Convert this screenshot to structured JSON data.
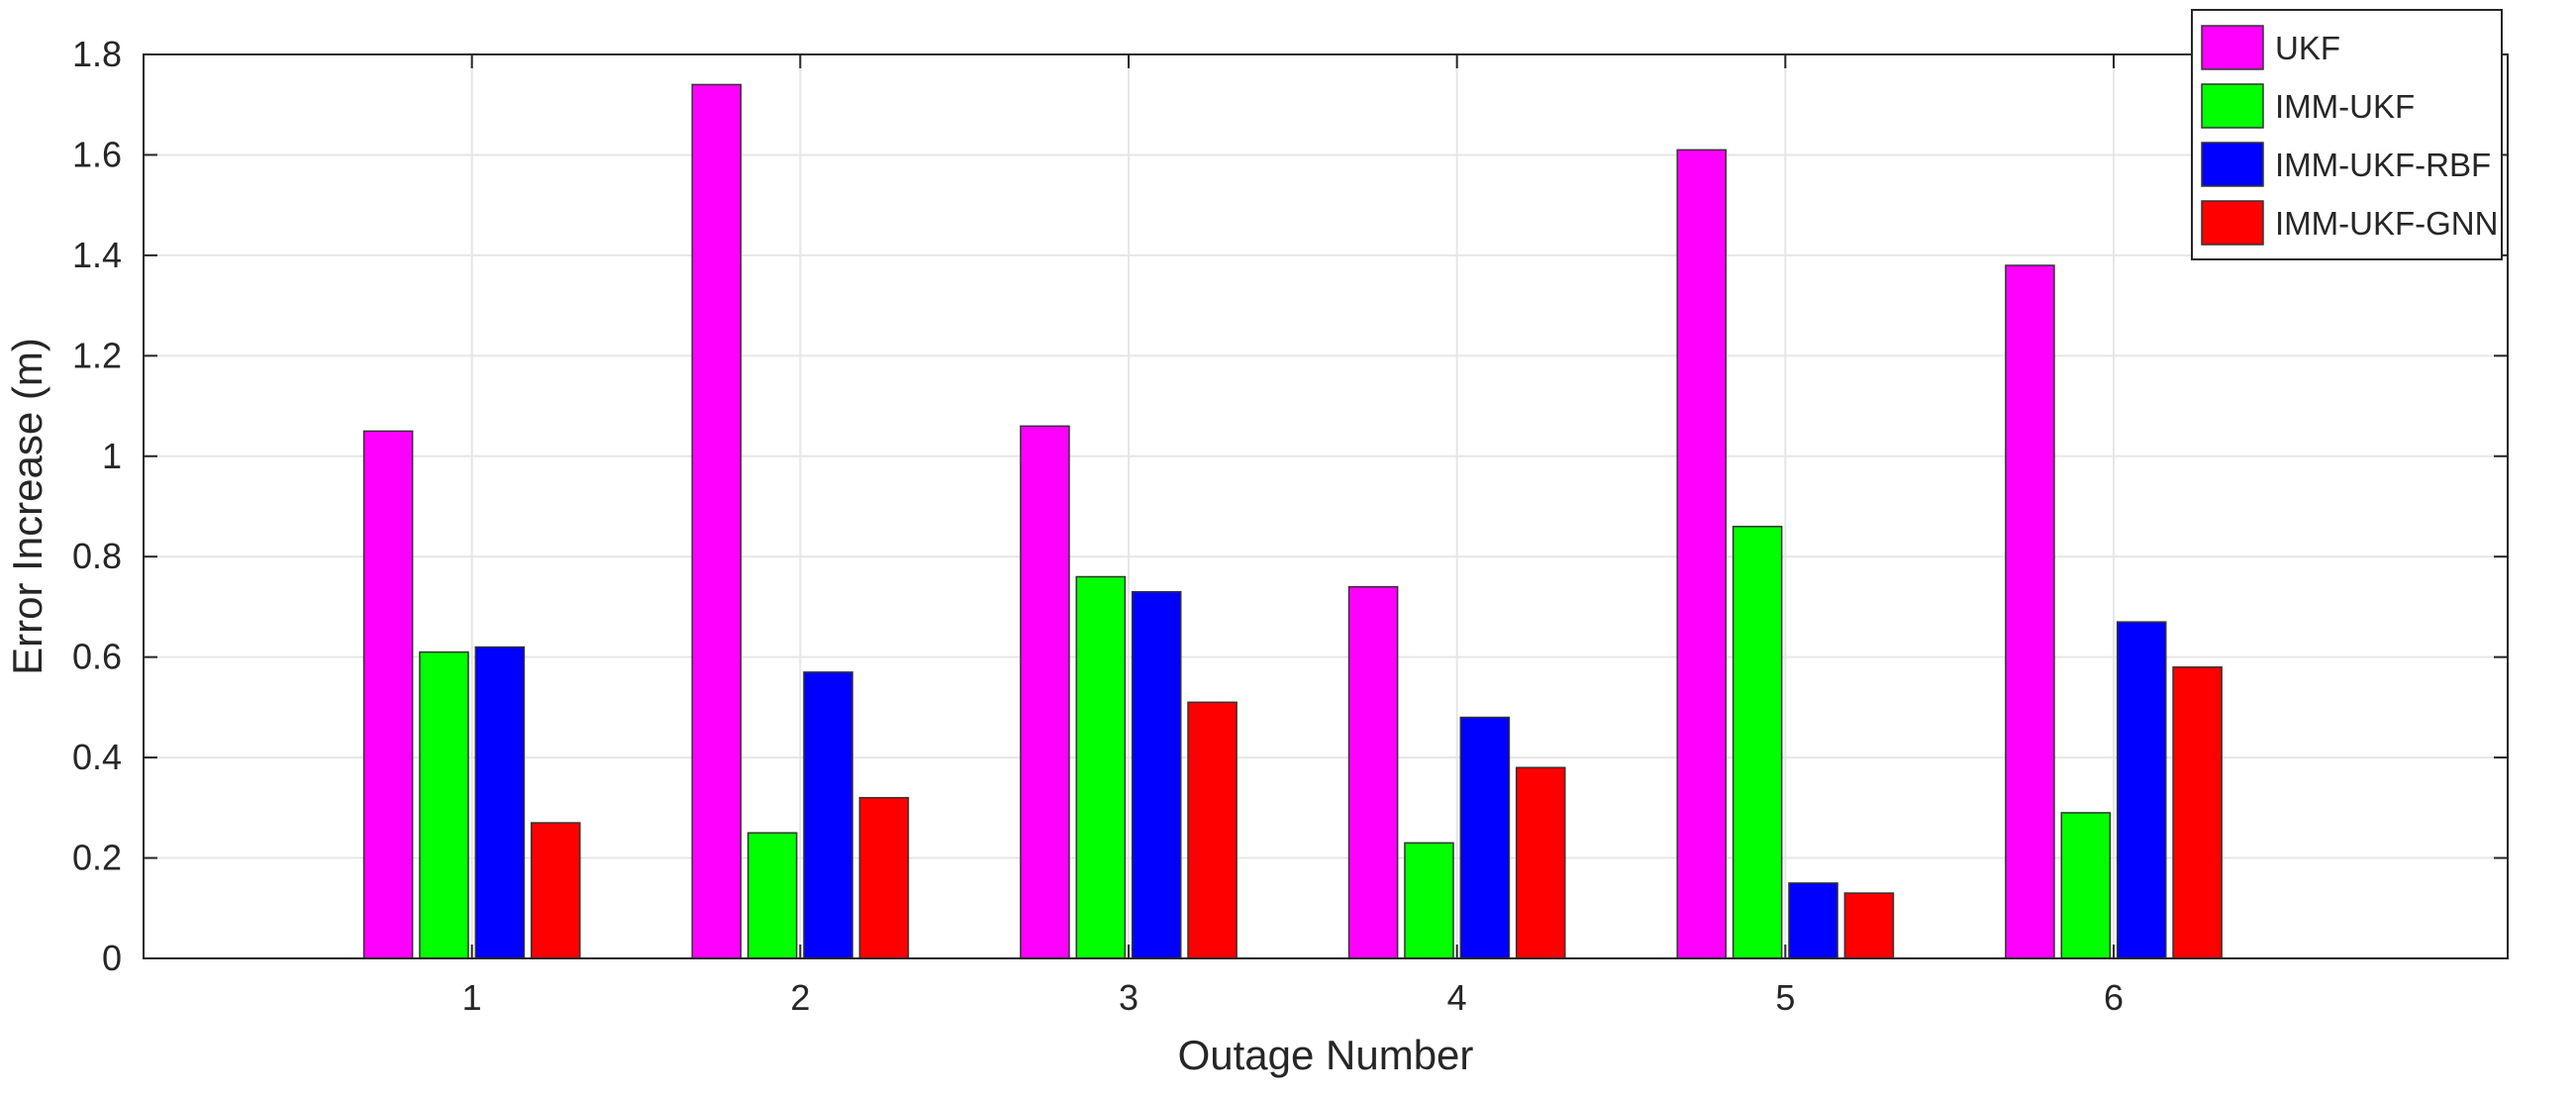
{
  "chart_data": {
    "type": "bar",
    "title": "",
    "xlabel": "Outage Number",
    "ylabel": "Error Increase (m)",
    "categories": [
      "1",
      "2",
      "3",
      "4",
      "5",
      "6"
    ],
    "xlim": [
      0,
      7.2
    ],
    "ylim": [
      0,
      1.8
    ],
    "yticks": [
      0,
      0.2,
      0.4,
      0.6,
      0.8,
      1,
      1.2,
      1.4,
      1.6,
      1.8
    ],
    "ytick_labels": [
      "0",
      "0.2",
      "0.4",
      "0.6",
      "0.8",
      "1",
      "1.2",
      "1.4",
      "1.6",
      "1.8"
    ],
    "grid": true,
    "legend_position": "top-right",
    "series": [
      {
        "name": "UKF",
        "color": "#ff00ff",
        "values": [
          1.05,
          1.74,
          1.06,
          0.74,
          1.61,
          1.38
        ]
      },
      {
        "name": "IMM-UKF",
        "color": "#00ff00",
        "values": [
          0.61,
          0.25,
          0.76,
          0.23,
          0.86,
          0.29
        ]
      },
      {
        "name": "IMM-UKF-RBF",
        "color": "#0000ff",
        "values": [
          0.62,
          0.57,
          0.73,
          0.48,
          0.15,
          0.67
        ]
      },
      {
        "name": "IMM-UKF-GNN",
        "color": "#ff0000",
        "values": [
          0.27,
          0.32,
          0.51,
          0.38,
          0.13,
          0.58
        ]
      }
    ]
  }
}
